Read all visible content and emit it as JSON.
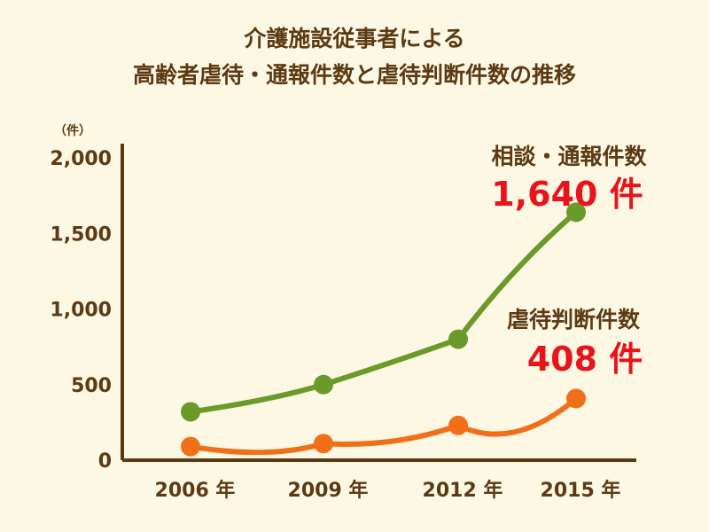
{
  "chart_data": {
    "type": "line",
    "title": [
      "介護施設従事者による",
      "高齢者虐待・通報件数と虐待判断件数の推移"
    ],
    "ylabel": "（件）",
    "categories": [
      "2006 年",
      "2009 年",
      "2012 年",
      "2015 年"
    ],
    "ylim": [
      0,
      2000
    ],
    "yticks": [
      "0",
      "500",
      "1,000",
      "1,500",
      "2,000"
    ],
    "ytick_values": [
      0,
      500,
      1000,
      1500,
      2000
    ],
    "grid": false,
    "series": [
      {
        "name": "相談・通報件数",
        "values": [
          320,
          500,
          800,
          1640
        ],
        "color": "#6a9a2a",
        "annotation": "1,640 件"
      },
      {
        "name": "虐待判断件数",
        "values": [
          90,
          110,
          230,
          408
        ],
        "color": "#f0701a",
        "annotation": "408 件"
      }
    ],
    "annotation_color": "#e8141c",
    "axis_color": "#5c3a14"
  }
}
